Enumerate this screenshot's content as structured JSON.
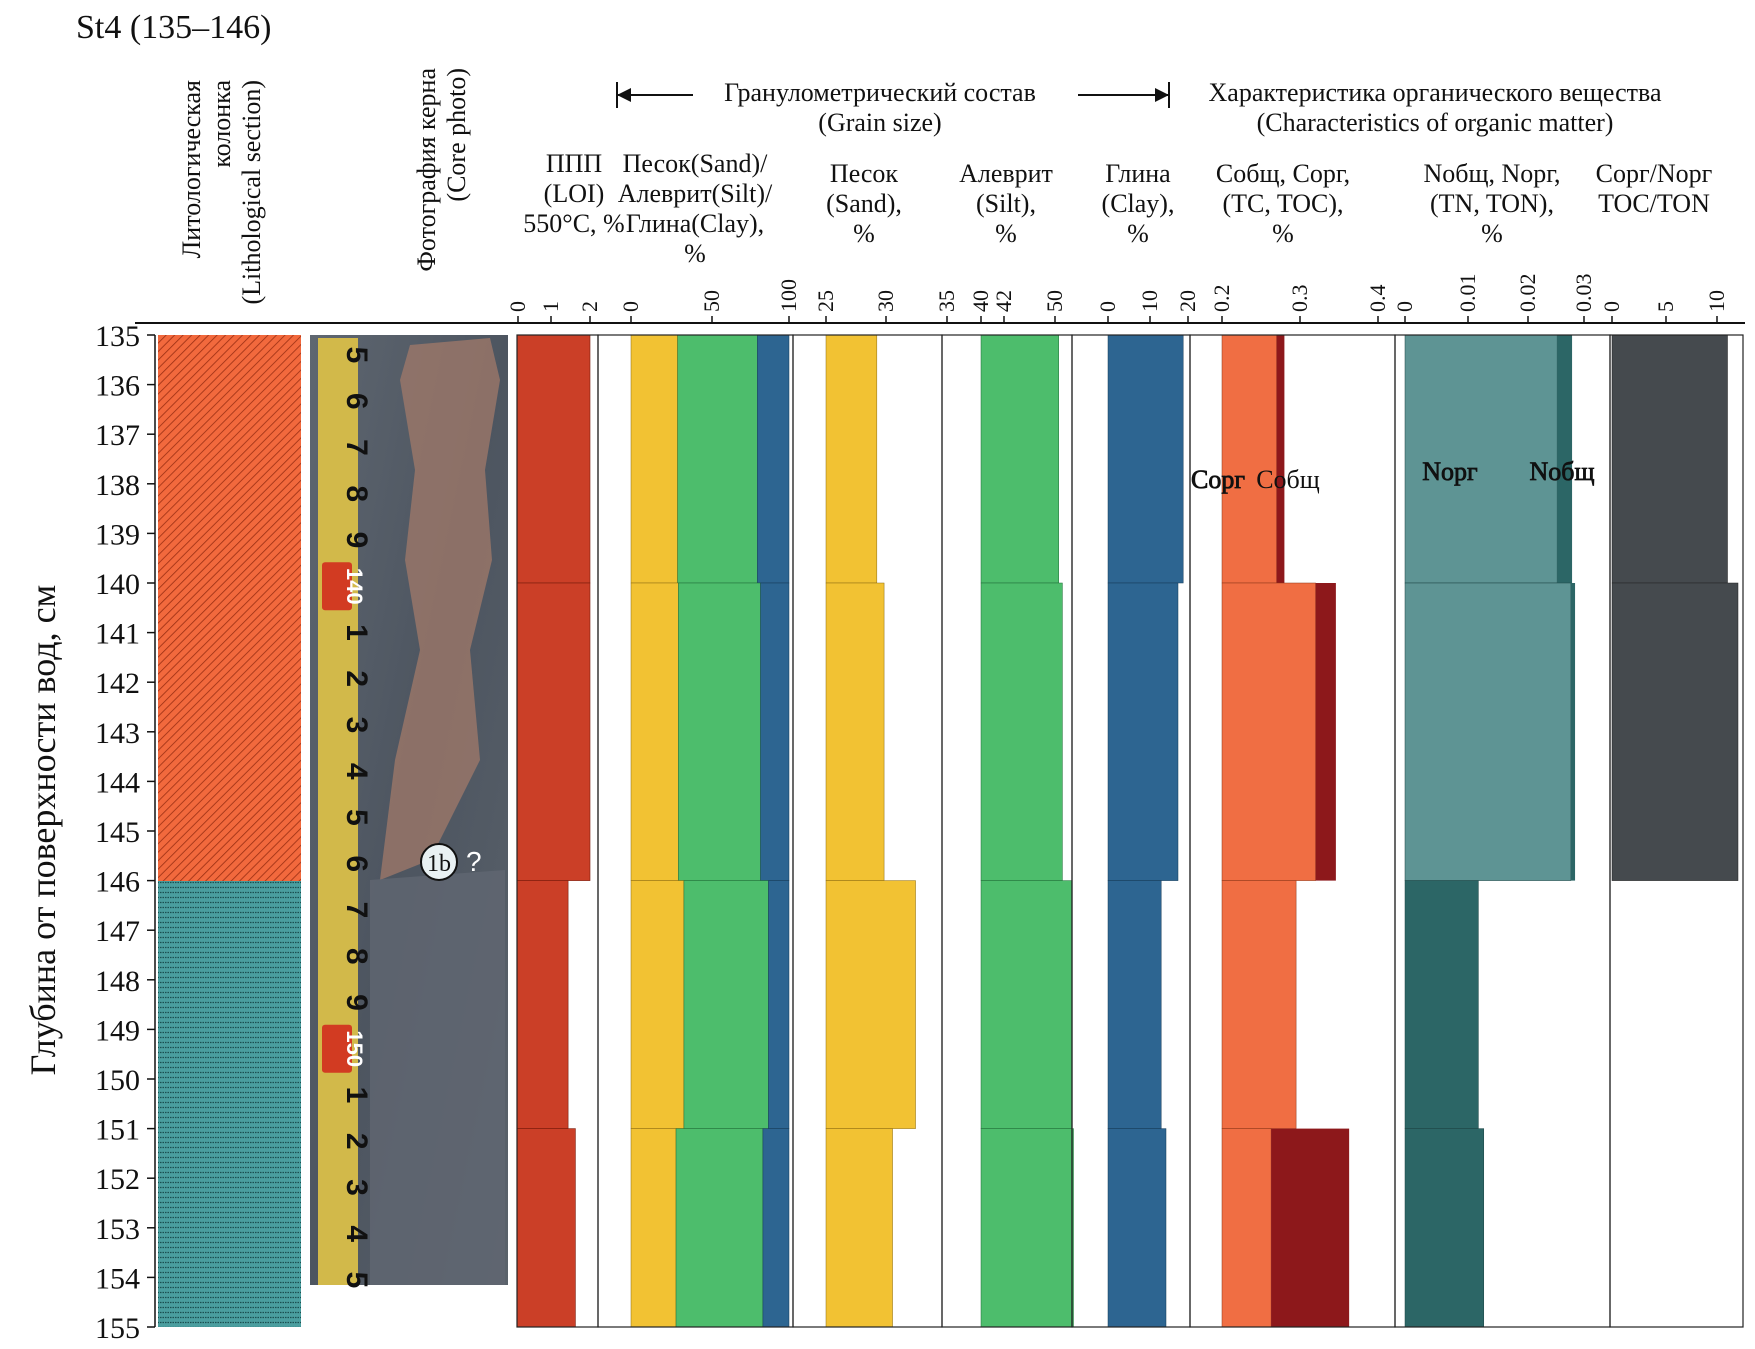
{
  "title": "St4 (135–146)",
  "y_axis_label": "Глубина от поверхности вод, см",
  "section_titles": {
    "grain": [
      "Гранулометрический состав",
      "(Grain size)"
    ],
    "organic": [
      "Характеристика органического вещества",
      "(Characteristics of organic matter)"
    ]
  },
  "columns": {
    "lithology": [
      "Литологическая",
      "колонка",
      "(Lithological section)"
    ],
    "photo": [
      "Фотография керна",
      "(Core photo)"
    ],
    "loi": [
      "ППП",
      "(LOI)",
      "550°C, %"
    ],
    "composite": [
      "Песок(Sand)/",
      "Алеврит(Silt)/",
      "Глина(Clay),",
      "%"
    ],
    "sand": [
      "Песок",
      "(Sand),",
      "%"
    ],
    "silt": [
      "Алеврит",
      "(Silt),",
      "%"
    ],
    "clay": [
      "Глина",
      "(Clay),",
      "%"
    ],
    "carbon": [
      "Cобщ, Cорг,",
      "(TC, TOC),",
      "%"
    ],
    "nitrogen": [
      "Nобщ, Nорг,",
      "(TN, TON),",
      "%"
    ],
    "ratio": [
      "Cорг/Nорг",
      "TOC/TON"
    ]
  },
  "series_labels": {
    "c_org": "Cорг",
    "c_tot": "Cобщ",
    "n_org": "Nорг",
    "n_tot": "Nобщ"
  },
  "photo_annotation": {
    "circle": "1b",
    "question": "?"
  },
  "ruler": {
    "digits": [
      "5",
      "6",
      "7",
      "8",
      "9",
      "140",
      "1",
      "2",
      "3",
      "4",
      "5",
      "6",
      "7",
      "8",
      "9",
      "150",
      "1",
      "2",
      "3",
      "4",
      "5"
    ]
  },
  "colors": {
    "loi": "#cb3f27",
    "sand": "#f2c233",
    "silt": "#4dbd6c",
    "clay": "#2d6591",
    "c_org": "#f06e43",
    "c_tot": "#8d181b",
    "n_org": "#5e9494",
    "n_tot": "#2c6666",
    "n_org_lower": "#2c6666",
    "ratio": "#454a4e",
    "litho_upper": "#f2693d",
    "litho_lower": "#3a8c8d"
  },
  "chart_data": {
    "type": "bar",
    "depth_axis": {
      "label": "Глубина от поверхности вод, см",
      "range": [
        135,
        155
      ],
      "ticks": [
        135,
        136,
        137,
        138,
        139,
        140,
        141,
        142,
        143,
        144,
        145,
        146,
        147,
        148,
        149,
        150,
        151,
        152,
        153,
        154,
        155
      ]
    },
    "intervals": [
      [
        135,
        140
      ],
      [
        140,
        146
      ],
      [
        146,
        151
      ],
      [
        151,
        155
      ]
    ],
    "lithology": [
      {
        "from": 135,
        "to": 146,
        "pattern": "orange-hatched"
      },
      {
        "from": 146,
        "to": 155,
        "pattern": "teal-dotted"
      }
    ],
    "panels": {
      "loi": {
        "unit": "%",
        "ticks": [
          0,
          1,
          2
        ],
        "values": [
          2.0,
          2.0,
          1.4,
          1.6
        ]
      },
      "composite": {
        "unit": "%",
        "ticks": [
          0,
          50,
          100
        ],
        "sand": [
          29.5,
          30,
          33.5,
          28.5
        ],
        "silt": [
          50.5,
          52,
          53.5,
          55
        ],
        "clay": [
          20,
          18,
          13,
          16.5
        ]
      },
      "sand": {
        "unit": "%",
        "ticks": [
          25,
          30,
          35
        ],
        "values": [
          29.2,
          29.8,
          32.4,
          30.5
        ]
      },
      "silt": {
        "unit": "%",
        "ticks": [
          40,
          42,
          50
        ],
        "values": [
          50.5,
          51,
          52.3,
          52.5
        ]
      },
      "clay": {
        "unit": "%",
        "ticks": [
          0,
          10,
          20
        ],
        "values": [
          18.8,
          17.5,
          13.3,
          14.5
        ]
      },
      "carbon": {
        "unit": "%",
        "ticks": [
          0.2,
          0.3,
          0.4
        ],
        "toc": [
          0.27,
          0.32,
          0.295,
          0.263
        ],
        "tc": [
          0.28,
          0.346,
          0.295,
          0.363
        ]
      },
      "nitrogen": {
        "unit": "%",
        "ticks": [
          0,
          0.01,
          0.02,
          0.03
        ],
        "ton": [
          0.0255,
          0.0278,
          0.0123,
          0.0132
        ],
        "tn": [
          0.028,
          0.0285,
          0.0123,
          0.0132
        ]
      },
      "ratio": {
        "unit": "",
        "ticks": [
          0,
          5,
          10
        ],
        "values": [
          11,
          12,
          null,
          null
        ]
      }
    }
  }
}
